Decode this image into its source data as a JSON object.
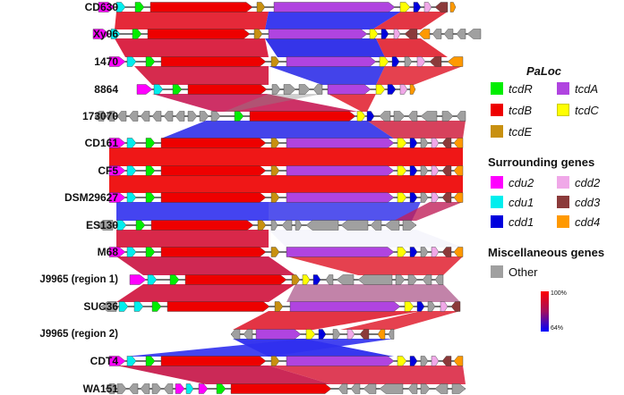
{
  "strains": [
    "CD630",
    "Xy06",
    "1470",
    "8864",
    "173070",
    "CD161",
    "CF5",
    "DSM29627",
    "ES130",
    "M68",
    "J9965 (region 1)",
    "SUC36",
    "J9965 (region 2)",
    "CDT4",
    "WA151"
  ],
  "legend": {
    "paloc_title": "PaLoc",
    "surrounding_title": "Surrounding genes",
    "misc_title": "Miscellaneous genes",
    "paloc": [
      {
        "name": "tcdR",
        "color": "#00ee00"
      },
      {
        "name": "tcdA",
        "color": "#b044e0"
      },
      {
        "name": "tcdB",
        "color": "#ee0000"
      },
      {
        "name": "tcdC",
        "color": "#ffff00"
      },
      {
        "name": "tcdE",
        "color": "#c89010"
      }
    ],
    "surrounding": [
      {
        "name": "cdu2",
        "color": "#ff00ff"
      },
      {
        "name": "cdd2",
        "color": "#f0a8e8"
      },
      {
        "name": "cdu1",
        "color": "#00eeee"
      },
      {
        "name": "cdd3",
        "color": "#8b3a3a"
      },
      {
        "name": "cdd1",
        "color": "#0000dd"
      },
      {
        "name": "cdd4",
        "color": "#ff9900"
      }
    ],
    "misc": [
      {
        "name": "Other",
        "color": "#a0a0a0"
      }
    ]
  },
  "identity_scale": {
    "max_label": "100%",
    "min_label": "64%",
    "max_color": "#ff0000",
    "min_color": "#0000ff"
  }
}
